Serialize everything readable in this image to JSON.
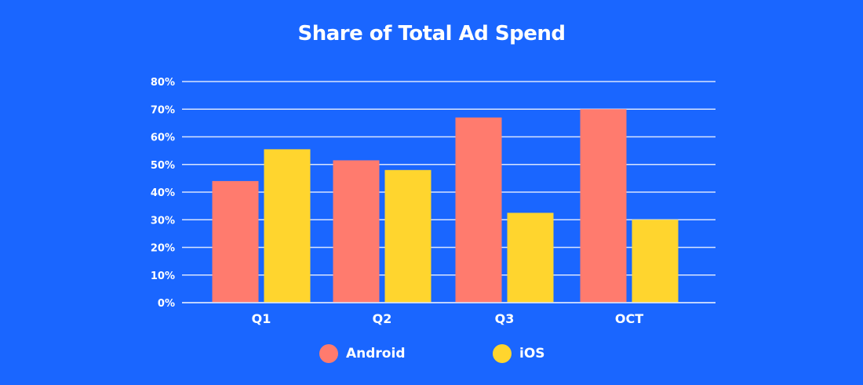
{
  "chart_data": {
    "type": "bar",
    "title": "Share of Total Ad Spend",
    "xlabel": "",
    "ylabel": "",
    "categories": [
      "Q1",
      "Q2",
      "Q3",
      "OCT"
    ],
    "series": [
      {
        "name": "Android",
        "color": "#FF7B6E",
        "values": [
          44,
          51.5,
          67,
          70
        ]
      },
      {
        "name": "iOS",
        "color": "#FFD52E",
        "values": [
          55.5,
          48,
          32.5,
          30
        ]
      }
    ],
    "ylim": [
      0,
      80
    ],
    "yticks": [
      "0%",
      "10%",
      "20%",
      "30%",
      "40%",
      "50%",
      "60%",
      "70%",
      "80%"
    ],
    "grid": true,
    "legend_position": "bottom-center",
    "colors": {
      "background": "#1A66FF",
      "gridline": "#D8E4FF",
      "text": "#FFFFFF"
    }
  }
}
